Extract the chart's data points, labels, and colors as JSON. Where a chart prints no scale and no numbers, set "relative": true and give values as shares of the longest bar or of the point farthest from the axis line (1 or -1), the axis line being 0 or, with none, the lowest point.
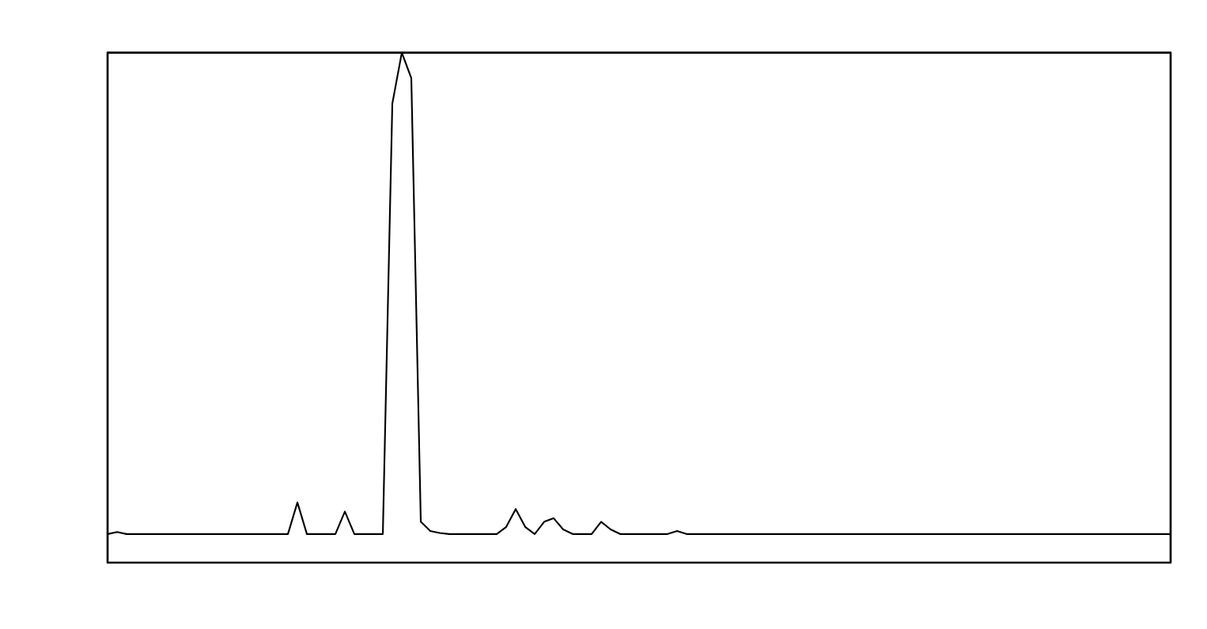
{
  "chart_data": {
    "type": "line",
    "relative": true,
    "marker": "none",
    "line_style": "solid",
    "categories": [
      null,
      null,
      null,
      null,
      null,
      null,
      null,
      null,
      null,
      null,
      null,
      null,
      null,
      null,
      null,
      null,
      null,
      null,
      null,
      null,
      null,
      null,
      null,
      null,
      null,
      null,
      null,
      null,
      null,
      null,
      null,
      null,
      null,
      null,
      null,
      null,
      null,
      null,
      null,
      null,
      null,
      null,
      null,
      null,
      null,
      null,
      null,
      null,
      null,
      null,
      null,
      null,
      null,
      null,
      null,
      null,
      null,
      null,
      null,
      null,
      null,
      null,
      null,
      null,
      null,
      null,
      null,
      null,
      null,
      null,
      null,
      null,
      null,
      null,
      null,
      null,
      null,
      null,
      null,
      null,
      null,
      null,
      null,
      null,
      null,
      null,
      null,
      null,
      null,
      null,
      null,
      null,
      null,
      null,
      null,
      null,
      null,
      null,
      null,
      null,
      null,
      null,
      null,
      null,
      null,
      null,
      null,
      null,
      null,
      null,
      null,
      null,
      null
    ],
    "series": [
      {
        "color": "#000000",
        "values": [
          0.056,
          0.06,
          0.056,
          0.056,
          0.056,
          0.056,
          0.056,
          0.056,
          0.056,
          0.056,
          0.056,
          0.056,
          0.056,
          0.056,
          0.056,
          0.056,
          0.056,
          0.056,
          0.056,
          0.056,
          0.118,
          0.056,
          0.056,
          0.056,
          0.056,
          0.1,
          0.056,
          0.056,
          0.056,
          0.056,
          0.9,
          1.0,
          0.95,
          0.08,
          0.062,
          0.058,
          0.056,
          0.056,
          0.056,
          0.056,
          0.056,
          0.056,
          0.07,
          0.105,
          0.07,
          0.056,
          0.08,
          0.087,
          0.065,
          0.056,
          0.056,
          0.056,
          0.08,
          0.065,
          0.056,
          0.056,
          0.056,
          0.056,
          0.056,
          0.056,
          0.062,
          0.056,
          0.056,
          0.056,
          0.056,
          0.056,
          0.056,
          0.056,
          0.056,
          0.056,
          0.056,
          0.056,
          0.056,
          0.056,
          0.056,
          0.056,
          0.056,
          0.056,
          0.056,
          0.056,
          0.056,
          0.056,
          0.056,
          0.056,
          0.056,
          0.056,
          0.056,
          0.056,
          0.056,
          0.056,
          0.056,
          0.056,
          0.056,
          0.056,
          0.056,
          0.056,
          0.056,
          0.056,
          0.056,
          0.056,
          0.056,
          0.056,
          0.056,
          0.056,
          0.056,
          0.056,
          0.056,
          0.056,
          0.056,
          0.056,
          0.056,
          0.056,
          0.056
        ]
      }
    ]
  }
}
